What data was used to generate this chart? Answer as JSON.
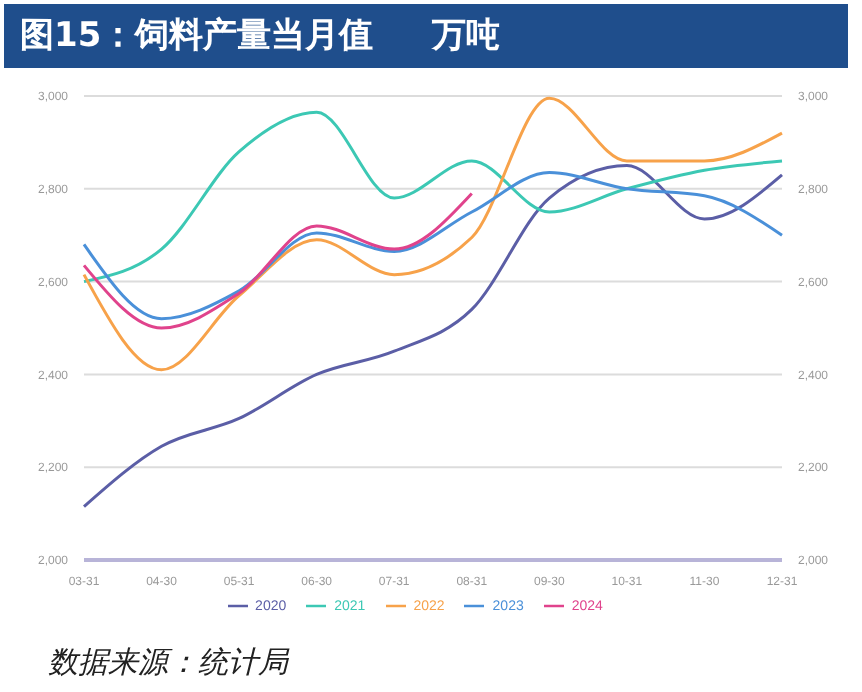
{
  "chart_data": {
    "type": "line",
    "title": "图15：饲料产量当月值     万吨",
    "annotations": [
      "数据来源：统计局"
    ],
    "categories": [
      "03-31",
      "04-30",
      "05-31",
      "06-30",
      "07-31",
      "08-31",
      "09-30",
      "10-31",
      "11-30",
      "12-31"
    ],
    "series": [
      {
        "name": "2020",
        "color": "#5b5ea6",
        "values": [
          2115,
          2245,
          2305,
          2400,
          2450,
          2540,
          2780,
          2850,
          2735,
          2830
        ]
      },
      {
        "name": "2021",
        "color": "#3cc8b4",
        "values": [
          2600,
          2670,
          2880,
          2965,
          2780,
          2860,
          2750,
          2800,
          2840,
          2860
        ]
      },
      {
        "name": "2022",
        "color": "#f7a24a",
        "values": [
          2615,
          2410,
          2570,
          2690,
          2615,
          2695,
          2995,
          2860,
          2860,
          2920
        ]
      },
      {
        "name": "2023",
        "color": "#4a90d9",
        "values": [
          2680,
          2520,
          2580,
          2705,
          2665,
          2750,
          2835,
          2800,
          2785,
          2700
        ]
      },
      {
        "name": "2024",
        "color": "#e0438c",
        "values": [
          2635,
          2500,
          2575,
          2720,
          2670,
          2790,
          null,
          null,
          null,
          null
        ]
      }
    ],
    "ylim": [
      2000,
      3000
    ],
    "yticks": [
      {
        "value": 2000,
        "label": "2,000"
      },
      {
        "value": 2200,
        "label": "2,200"
      },
      {
        "value": 2400,
        "label": "2,400"
      },
      {
        "value": 2600,
        "label": "2,600"
      },
      {
        "value": 2800,
        "label": "2,800"
      },
      {
        "value": 3000,
        "label": "3,000"
      }
    ],
    "y2lim": [
      2000,
      3000
    ],
    "y2ticks": [
      {
        "value": 2000,
        "label": "2,000"
      },
      {
        "value": 2200,
        "label": "2,200"
      },
      {
        "value": 2400,
        "label": "2,400"
      },
      {
        "value": 2600,
        "label": "2,600"
      },
      {
        "value": 2800,
        "label": "2,800"
      },
      {
        "value": 3000,
        "label": "3,000"
      }
    ],
    "grid": "y",
    "legend": "bottom",
    "marker": "none",
    "line_style": "solid"
  }
}
